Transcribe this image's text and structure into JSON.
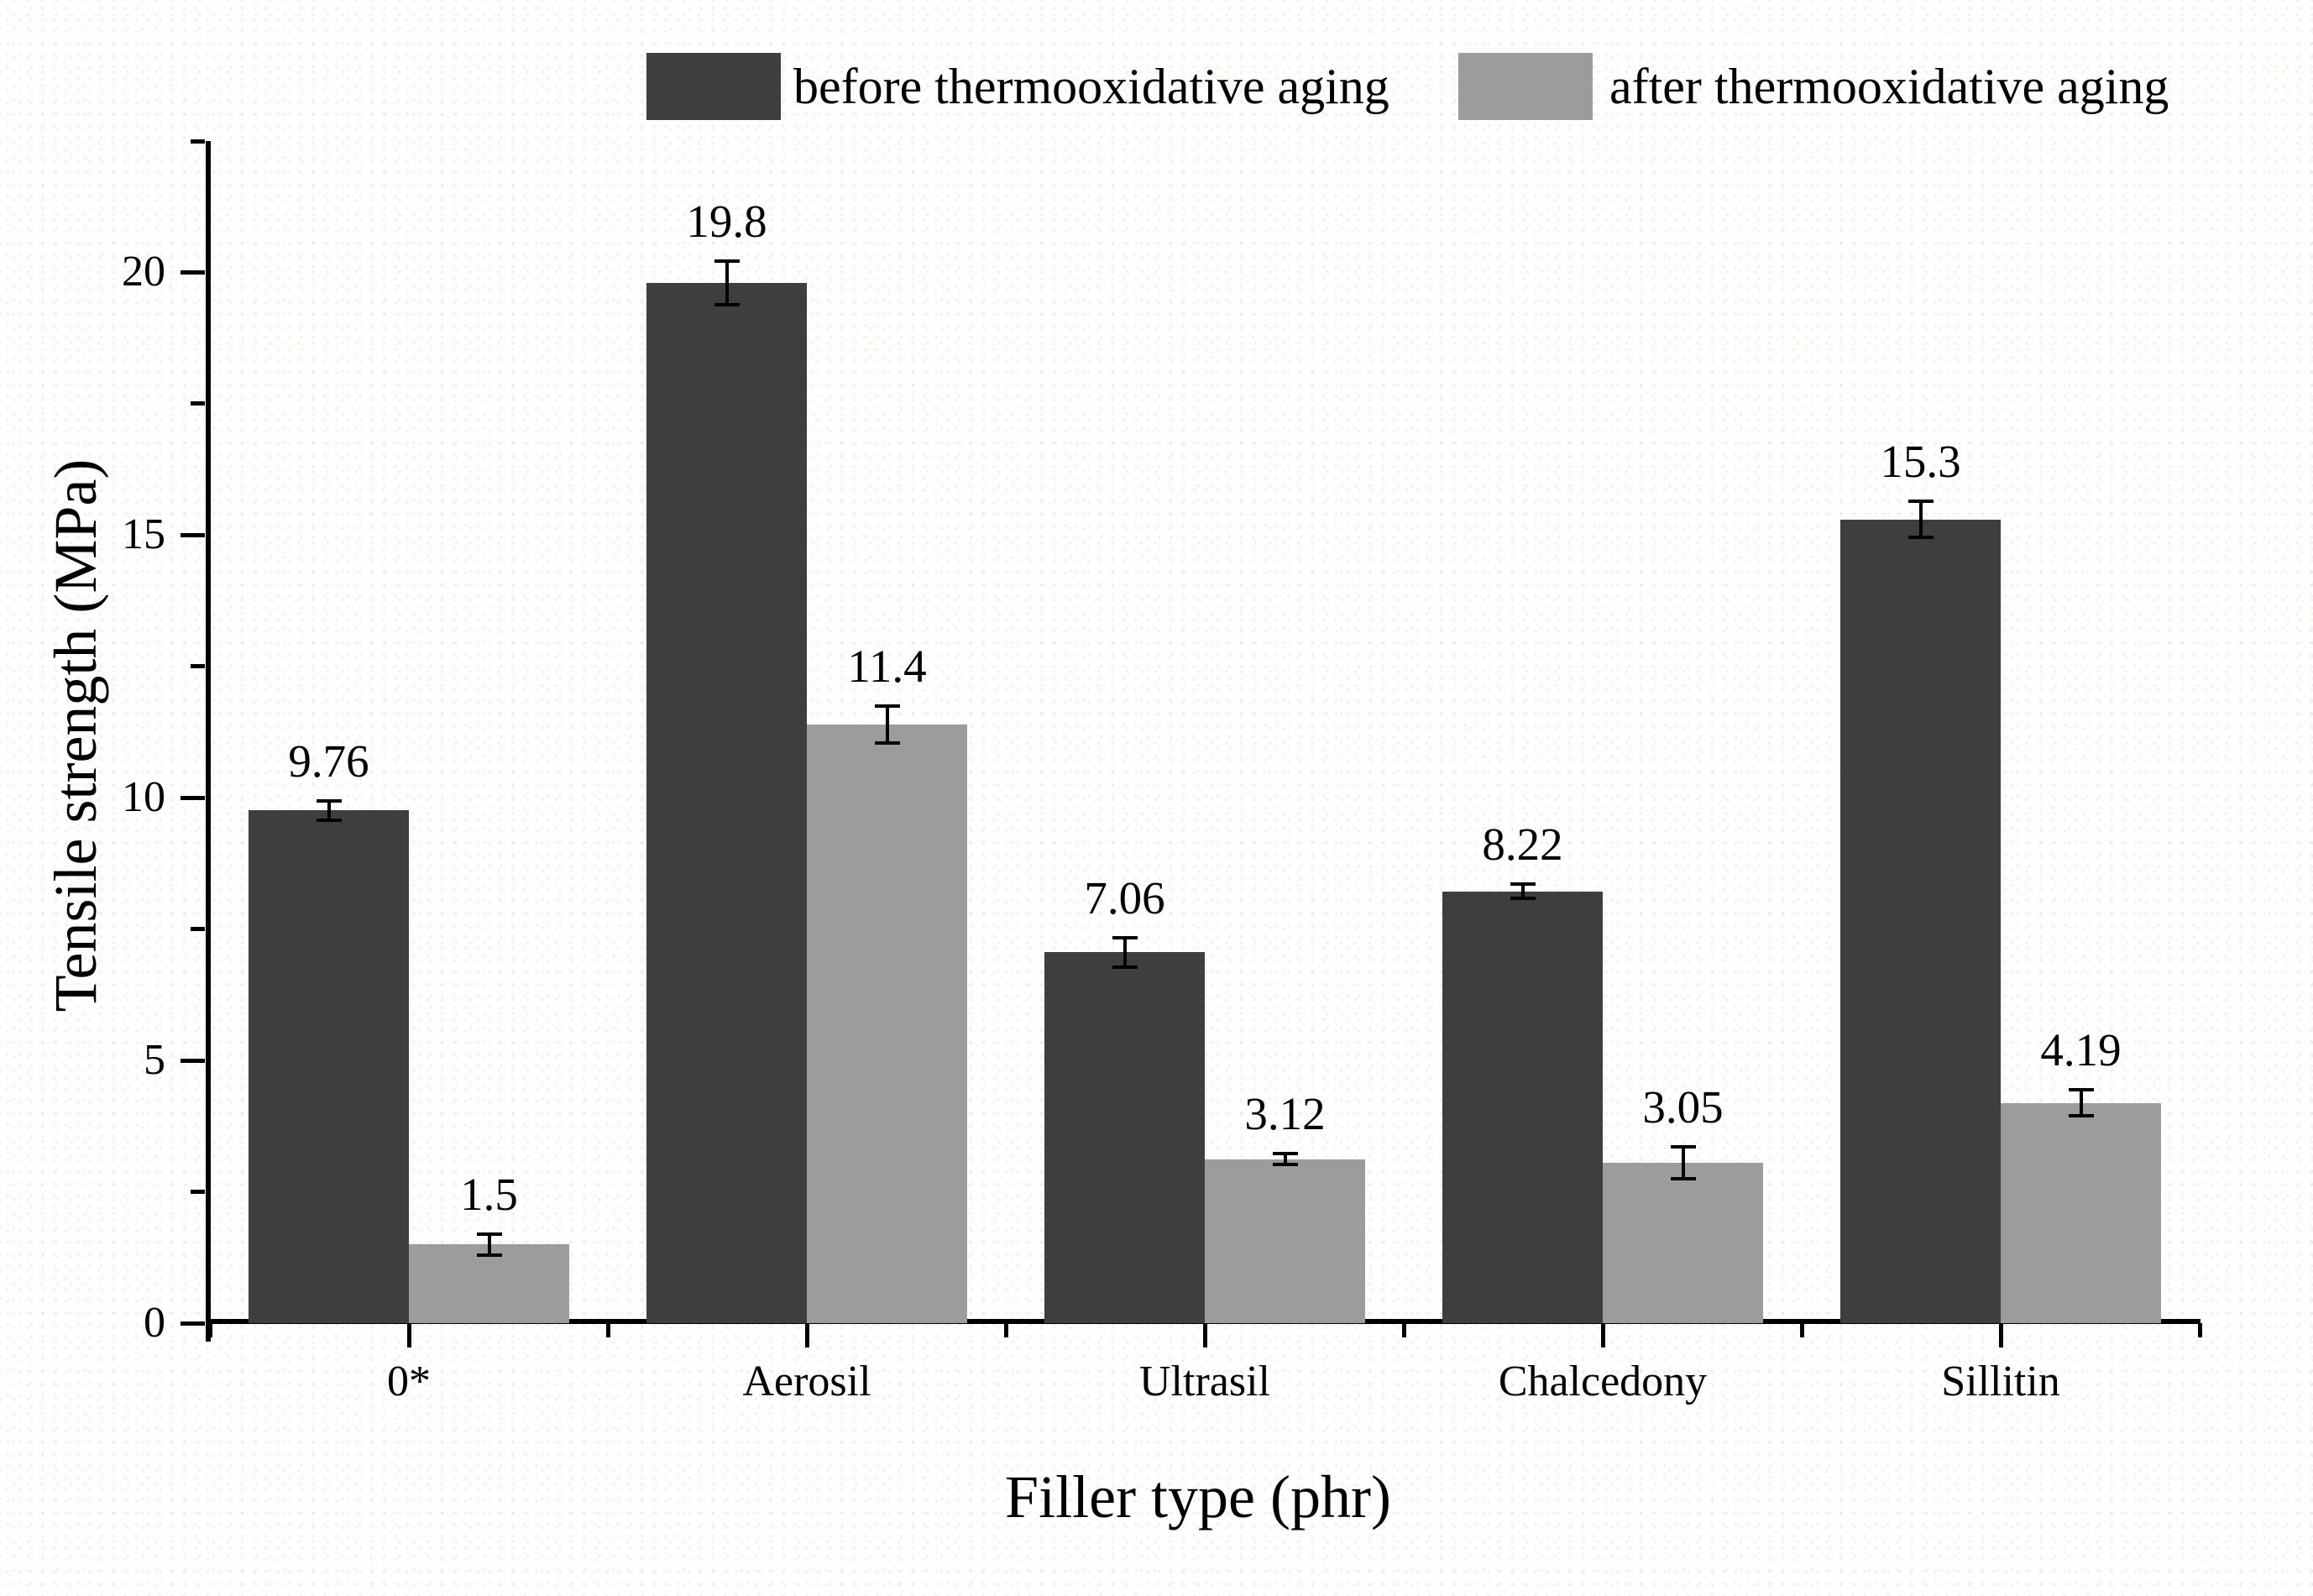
{
  "figure": {
    "legend": {
      "items": [
        {
          "label": "before thermooxidative aging",
          "color": "#3e3e3e"
        },
        {
          "label": "after thermooxidative aging",
          "color": "#9c9c9c"
        }
      ]
    },
    "y_axis": {
      "title": "Tensile strength (MPa)"
    },
    "x_axis": {
      "title": "Filler type (phr)"
    }
  },
  "chart_data": {
    "type": "bar",
    "title": "",
    "xlabel": "Filler type (phr)",
    "ylabel": "Tensile strength (MPa)",
    "categories": [
      "0*",
      "Aerosil",
      "Ultrasil",
      "Chalcedony",
      "Sillitin"
    ],
    "series": [
      {
        "name": "before thermooxidative aging",
        "color": "#3e3e3e",
        "values": [
          9.76,
          19.8,
          7.06,
          8.22,
          15.3
        ],
        "errors": [
          0.18,
          0.42,
          0.28,
          0.13,
          0.35
        ]
      },
      {
        "name": "after thermooxidative aging",
        "color": "#9c9c9c",
        "values": [
          1.5,
          11.4,
          3.12,
          3.05,
          4.19
        ],
        "errors": [
          0.2,
          0.35,
          0.1,
          0.3,
          0.25
        ]
      }
    ],
    "ylim": [
      0,
      22.5
    ],
    "y_major_ticks": [
      0,
      5,
      10,
      15,
      20
    ],
    "y_minor_ticks": [
      2.5,
      7.5,
      12.5,
      17.5,
      22.5
    ],
    "grid": false,
    "legend_position": "top",
    "error_bars": true,
    "value_labels": true
  }
}
